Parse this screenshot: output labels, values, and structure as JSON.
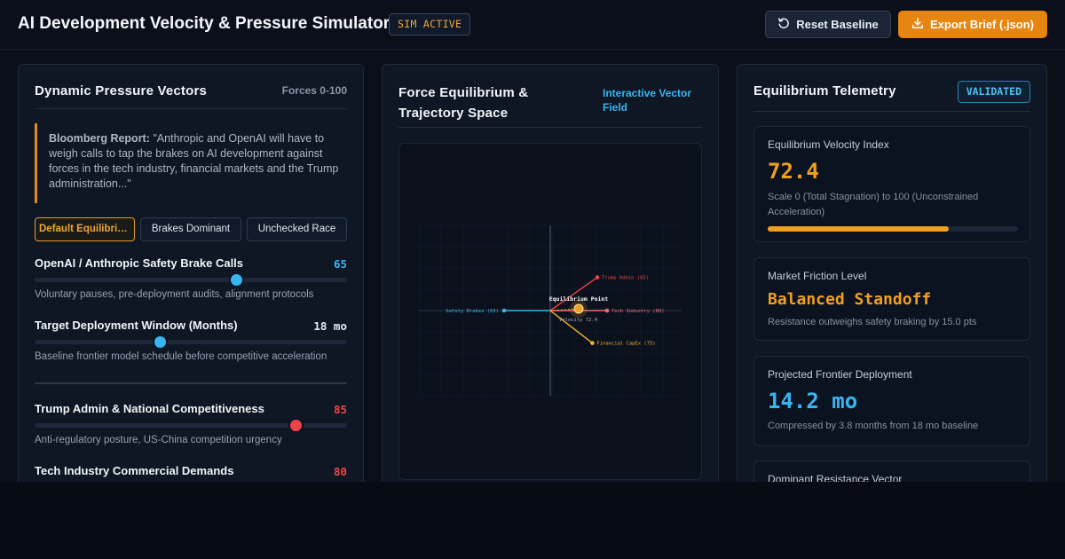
{
  "header": {
    "title": "AI Development Velocity & Pressure Simulator",
    "status_badge": "SIM ACTIVE",
    "reset_label": "Reset Baseline",
    "export_label": "Export Brief (.json)"
  },
  "left_panel": {
    "title": "Dynamic Pressure Vectors",
    "hint": "Forces 0-100",
    "quote_source": "Bloomberg Report:",
    "quote_text": "\"Anthropic and OpenAI will have to weigh calls to tap the brakes on AI development against forces in the tech industry, financial markets and the Trump administration...\"",
    "presets": [
      {
        "label": "Default Equilibrium",
        "active": true
      },
      {
        "label": "Brakes Dominant",
        "active": false
      },
      {
        "label": "Unchecked Race",
        "active": false
      }
    ],
    "controls": [
      {
        "label": "OpenAI / Anthropic Safety Brake Calls",
        "value": 65,
        "value_text": "65",
        "desc": "Voluntary pauses, pre-deployment audits, alignment protocols",
        "color": "#38b6f2"
      },
      {
        "label": "Target Deployment Window (Months)",
        "value": 40,
        "value_text": "18 mo",
        "desc": "Baseline frontier model schedule before competitive acceleration",
        "color": "#38b6f2"
      },
      {
        "label": "Trump Admin & National Competitiveness",
        "value": 85,
        "value_text": "85",
        "desc": "Anti-regulatory posture, US-China competition urgency",
        "color": "#ef4444"
      },
      {
        "label": "Tech Industry Commercial Demands",
        "value": 80,
        "value_text": "80",
        "desc": "",
        "color": "#ef4444"
      }
    ]
  },
  "mid_panel": {
    "title_line1": "Force Equilibrium &",
    "title_line2": "Trajectory Space",
    "hint_line1": "Interactive Vector",
    "hint_line2": "Field"
  },
  "chart_data": {
    "type": "vector-field",
    "title": "Equilibrium Point",
    "annotation": "Velocity 72.4",
    "vectors": [
      {
        "name": "Trump Admin (85)",
        "value": 85,
        "color": "#ef4444",
        "direction": "up-right"
      },
      {
        "name": "Tech Industry (80)",
        "value": 80,
        "color": "#f26d6d",
        "direction": "right"
      },
      {
        "name": "Financial CapEx (75)",
        "value": 75,
        "color": "#f5b428",
        "direction": "down-right"
      },
      {
        "name": "Safety Brakes (65)",
        "value": 65,
        "color": "#38b6f2",
        "direction": "left"
      }
    ],
    "equilibrium_color": "#f0a020"
  },
  "right_panel": {
    "title": "Equilibrium Telemetry",
    "badge": "VALIDATED",
    "cards": [
      {
        "label": "Equilibrium Velocity Index",
        "value": "72.4",
        "sub": "Scale 0 (Total Stagnation) to 100 (Unconstrained Acceleration)",
        "color": "#f0a020",
        "progress": 0.724
      },
      {
        "label": "Market Friction Level",
        "value": "Balanced Standoff",
        "sub": "Resistance outweighs safety braking by 15.0 pts",
        "color": "#f0a020"
      },
      {
        "label": "Projected Frontier Deployment",
        "value": "14.2 mo",
        "sub": "Compressed by 3.8 months from 18 mo baseline",
        "color": "#38b6f2"
      },
      {
        "label": "Dominant Resistance Vector",
        "value": "",
        "sub": ""
      }
    ]
  }
}
